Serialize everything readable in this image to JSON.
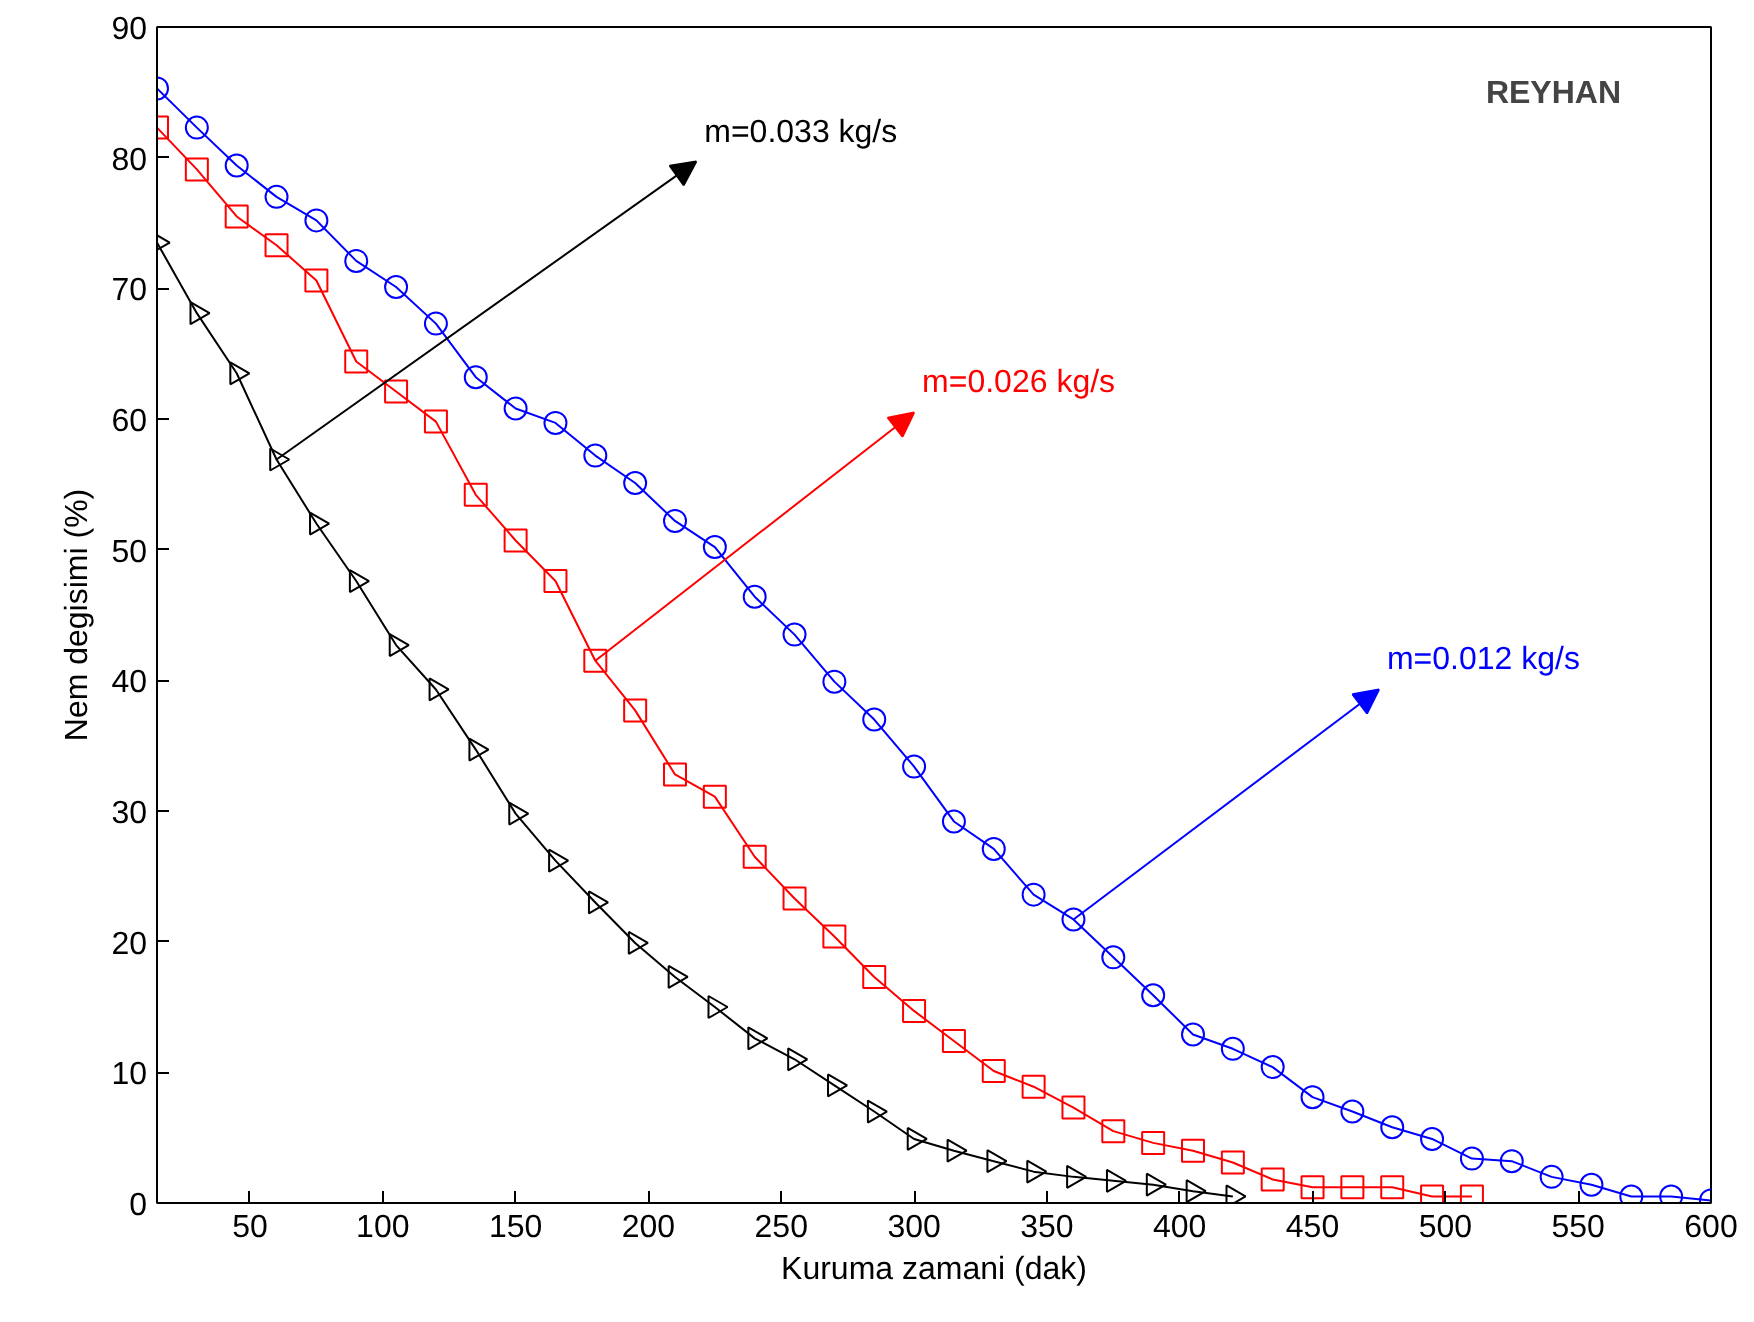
{
  "chart_data": {
    "type": "line",
    "xlabel": "Kuruma zamani (dak)",
    "ylabel": "Nem degisimi (%)",
    "xlim": [
      15,
      600
    ],
    "xticks": [
      50,
      100,
      150,
      200,
      250,
      300,
      350,
      400,
      450,
      500,
      550,
      600
    ],
    "ylim": [
      0,
      90
    ],
    "yticks": [
      0,
      10,
      20,
      30,
      40,
      50,
      60,
      70,
      80,
      90
    ],
    "series": [
      {
        "color": "#0000ff",
        "marker": "circle",
        "x": [
          15,
          30,
          45,
          60,
          75,
          90,
          105,
          120,
          135,
          150,
          165,
          180,
          195,
          210,
          225,
          240,
          255,
          270,
          285,
          300,
          315,
          330,
          345,
          360,
          375,
          390,
          405,
          420,
          435,
          450,
          465,
          480,
          495,
          510,
          525,
          540,
          555,
          570,
          585,
          600
        ],
        "values": [
          85.3,
          82.3,
          79.4,
          77.0,
          75.2,
          72.1,
          70.1,
          67.3,
          63.2,
          60.8,
          59.7,
          57.2,
          55.1,
          52.2,
          50.2,
          46.4,
          43.5,
          39.9,
          37.0,
          33.4,
          29.2,
          27.1,
          23.6,
          21.7,
          18.8,
          15.9,
          12.9,
          11.8,
          10.4,
          8.1,
          7.0,
          5.8,
          4.9,
          3.4,
          3.2,
          2.0,
          1.4,
          0.5,
          0.5,
          0.2
        ]
      },
      {
        "color": "#ff0000",
        "marker": "square",
        "x": [
          15,
          30,
          45,
          60,
          75,
          90,
          105,
          120,
          135,
          150,
          165,
          180,
          195,
          210,
          225,
          240,
          255,
          270,
          285,
          300,
          315,
          330,
          345,
          360,
          375,
          390,
          405,
          420,
          435,
          450,
          465,
          480,
          495,
          510
        ],
        "values": [
          82.3,
          79.1,
          75.5,
          73.3,
          70.6,
          64.4,
          62.1,
          59.8,
          54.2,
          50.7,
          47.6,
          41.5,
          37.7,
          32.8,
          31.1,
          26.5,
          23.3,
          20.4,
          17.3,
          14.7,
          12.4,
          10.1,
          8.9,
          7.3,
          5.5,
          4.6,
          4.0,
          3.1,
          1.8,
          1.2,
          1.2,
          1.2,
          0.5,
          0.5
        ]
      },
      {
        "color": "#000000",
        "marker": "triangle",
        "x": [
          15,
          30,
          45,
          60,
          75,
          90,
          105,
          120,
          135,
          150,
          165,
          180,
          195,
          210,
          225,
          240,
          255,
          270,
          285,
          300,
          315,
          330,
          345,
          360,
          375,
          390,
          405,
          420
        ],
        "values": [
          73.5,
          68.1,
          63.5,
          56.9,
          52.0,
          47.6,
          42.7,
          39.3,
          34.7,
          29.8,
          26.2,
          23.0,
          19.9,
          17.3,
          15.0,
          12.6,
          11.0,
          9.0,
          7.0,
          4.9,
          4.0,
          3.2,
          2.4,
          2.0,
          1.7,
          1.4,
          0.9,
          0.5
        ]
      }
    ],
    "annotations": [
      {
        "text": "m=0.012 kg/s",
        "x": 360,
        "y": 21.7
      },
      {
        "text": "m=0.026 kg/s",
        "x": 180,
        "y": 41.5
      },
      {
        "text": "m=0.033 kg/s",
        "x": 60,
        "y": 56.9
      },
      "REYHAN"
    ]
  }
}
